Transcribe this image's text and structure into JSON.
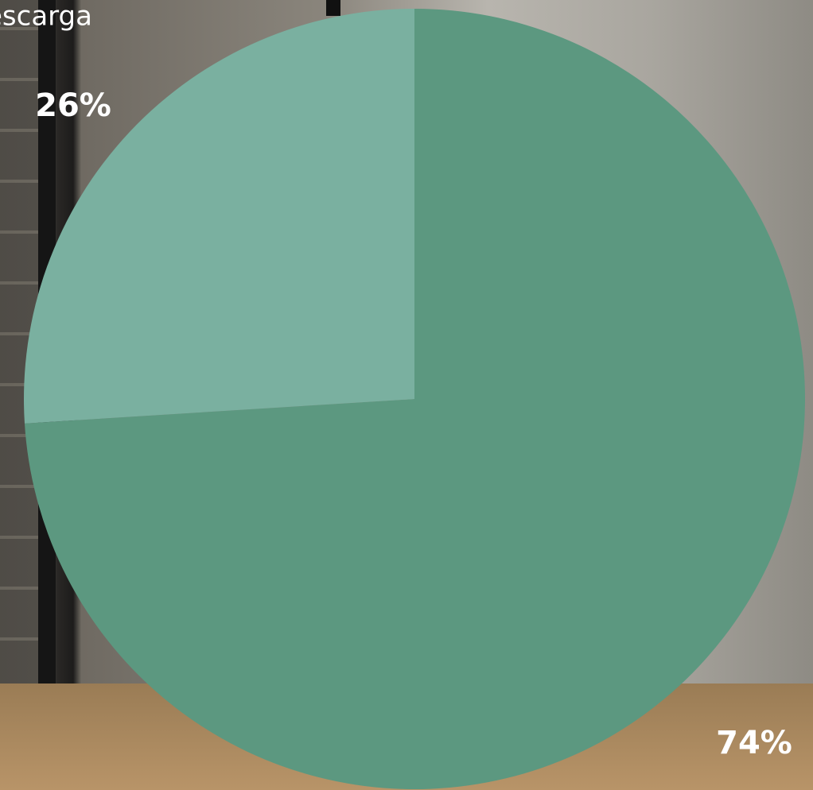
{
  "chart_data": {
    "type": "pie",
    "title": "escarga",
    "values": [
      74,
      26
    ],
    "value_labels": [
      "74%",
      "26%"
    ],
    "colors": [
      "#5c9880",
      "#7ab0a0"
    ]
  }
}
